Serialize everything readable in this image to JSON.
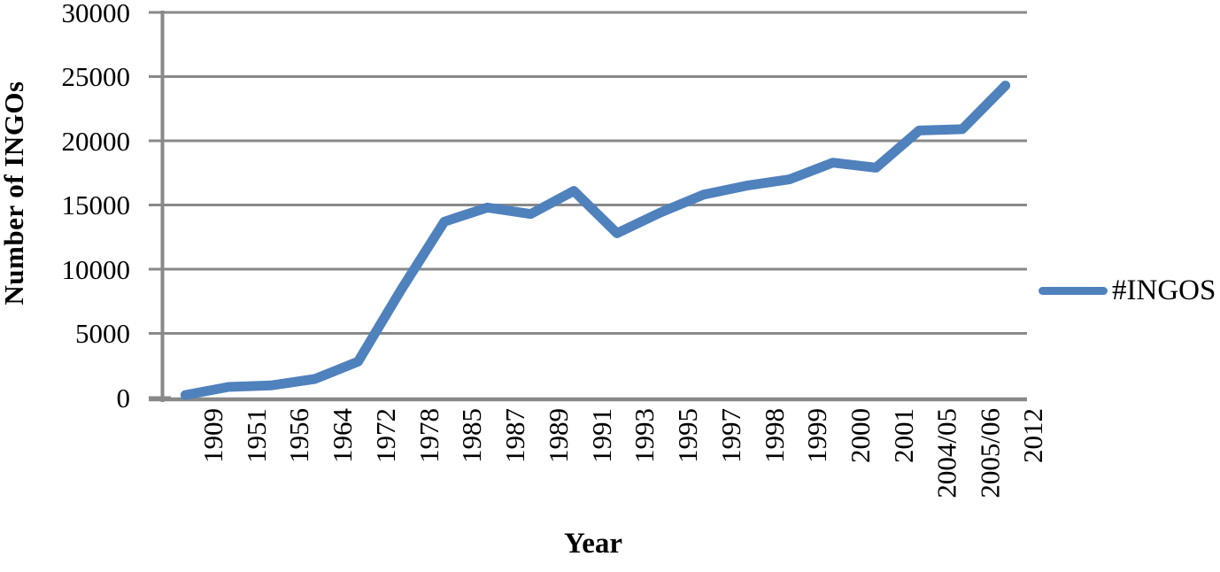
{
  "figure": {
    "y_axis_title": "Number of INGOs",
    "x_axis_title": "Year",
    "legend_label": "#INGOS"
  },
  "colors": {
    "series_line": "#4F81BD",
    "gridline": "#898989",
    "axis_line": "#898989",
    "text": "#000000",
    "background": "#FFFFFF"
  },
  "chart_data": {
    "type": "line",
    "title": "",
    "xlabel": "Year",
    "ylabel": "Number of INGOs",
    "categories": [
      "1909",
      "1951",
      "1956",
      "1964",
      "1972",
      "1978",
      "1985",
      "1987",
      "1989",
      "1991",
      "1993",
      "1995",
      "1997",
      "1998",
      "1999",
      "2000",
      "2001",
      "2004/05",
      "2005/06",
      "2012"
    ],
    "series": [
      {
        "name": "#INGOS",
        "color": "#4F81BD",
        "values": [
          200,
          830,
          950,
          1450,
          2800,
          8400,
          13700,
          14800,
          14300,
          16100,
          12800,
          14400,
          15800,
          16500,
          17000,
          18300,
          17900,
          20800,
          20900,
          24300
        ]
      }
    ],
    "ylim": [
      0,
      30000
    ],
    "yticks": [
      0,
      5000,
      10000,
      15000,
      20000,
      25000,
      30000
    ],
    "grid": "horizontal",
    "legend_position": "right",
    "marker": "none"
  }
}
